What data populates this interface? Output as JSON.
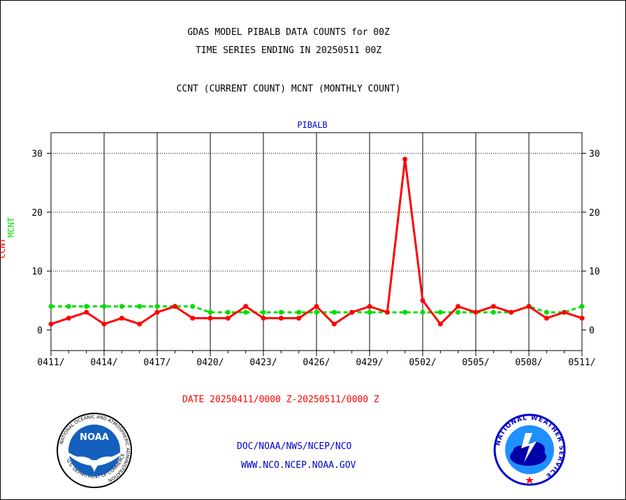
{
  "header": {
    "title_line1": "GDAS MODEL PIBALB DATA COUNTS for 00Z",
    "title_line2": "TIME SERIES ENDING IN 20250511 00Z",
    "subtitle": "CCNT (CURRENT COUNT) MCNT (MONTHLY COUNT)"
  },
  "footer": {
    "date_range": "DATE 20250411/0000 Z-20250511/0000 Z",
    "org_path": "DOC/NOAA/NWS/NCEP/NCO",
    "website": "WWW.NCO.NCEP.NOAA.GOV"
  },
  "logos": {
    "noaa_text": "NOAA",
    "noaa_ring": "NATIONAL OCEANIC AND ATMOSPHERIC ADMINISTRATION",
    "noaa_ring_bottom": "U.S. DEPARTMENT OF COMMERCE",
    "nws_ring": "NATIONAL WEATHER SERVICE"
  },
  "colors": {
    "ccnt": "#ff0000",
    "mcnt": "#00dd00",
    "plot_title": "#0000cc",
    "footer_blue": "#0000cc",
    "date_red": "#ff0000"
  },
  "chart_data": {
    "type": "line",
    "title": "PIBALB",
    "ylabel_ccnt": "CCNT",
    "ylabel_mcnt": "MCNT",
    "x_tick_labels": [
      "0411/",
      "0414/",
      "0417/",
      "0420/",
      "0423/",
      "0426/",
      "0429/",
      "0502/",
      "0505/",
      "0508/",
      "0511/"
    ],
    "y_ticks": [
      0,
      10,
      20,
      30
    ],
    "ylim": [
      -3.5,
      33.5
    ],
    "x": [
      "0411",
      "0412",
      "0413",
      "0414",
      "0415",
      "0416",
      "0417",
      "0418",
      "0419",
      "0420",
      "0421",
      "0422",
      "0423",
      "0424",
      "0425",
      "0426",
      "0427",
      "0428",
      "0429",
      "0430",
      "0501",
      "0502",
      "0503",
      "0504",
      "0505",
      "0506",
      "0507",
      "0508",
      "0509",
      "0510",
      "0511"
    ],
    "series": [
      {
        "name": "CCNT",
        "values": [
          1,
          2,
          3,
          1,
          2,
          1,
          3,
          4,
          2,
          2,
          2,
          4,
          2,
          2,
          2,
          4,
          1,
          3,
          4,
          3,
          29,
          5,
          1,
          4,
          3,
          4,
          3,
          4,
          2,
          3,
          2
        ]
      },
      {
        "name": "MCNT",
        "values": [
          4,
          4,
          4,
          4,
          4,
          4,
          4,
          4,
          4,
          3,
          3,
          3,
          3,
          3,
          3,
          3,
          3,
          3,
          3,
          3,
          3,
          3,
          3,
          3,
          3,
          3,
          3,
          4,
          3,
          3,
          4
        ]
      }
    ],
    "grid": true
  }
}
